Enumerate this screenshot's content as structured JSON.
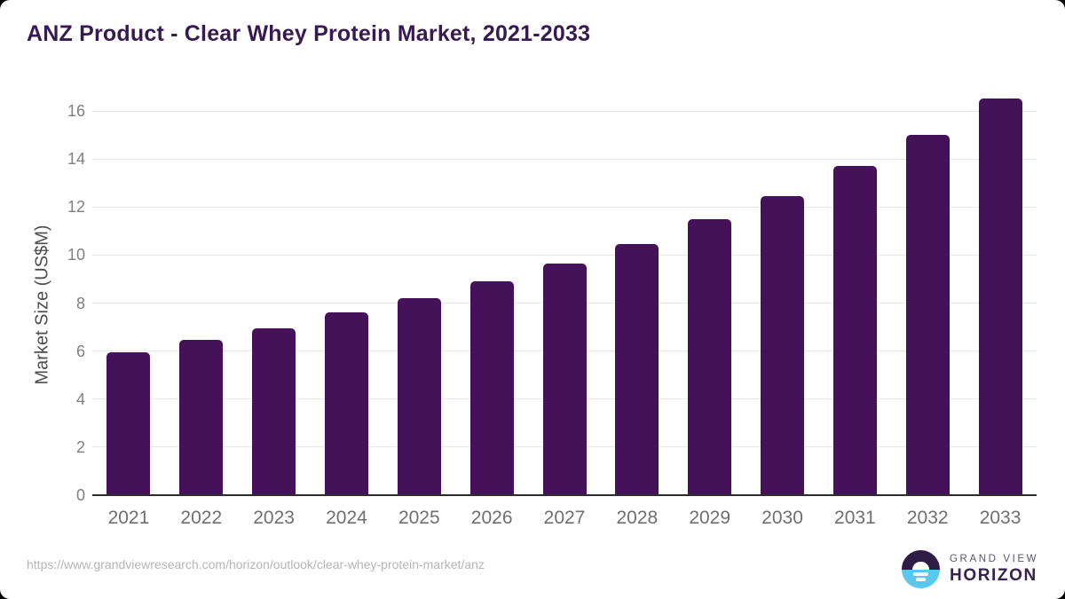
{
  "title": "ANZ Product - Clear Whey Protein Market, 2021-2033",
  "chart_data": {
    "type": "bar",
    "categories": [
      "2021",
      "2022",
      "2023",
      "2024",
      "2025",
      "2026",
      "2027",
      "2028",
      "2029",
      "2030",
      "2031",
      "2032",
      "2033"
    ],
    "values": [
      5.95,
      6.45,
      6.95,
      7.6,
      8.2,
      8.9,
      9.65,
      10.45,
      11.5,
      12.45,
      13.7,
      15.0,
      16.5
    ],
    "title": "ANZ Product - Clear Whey Protein Market, 2021-2033",
    "xlabel": "",
    "ylabel": "Market Size (US$M)",
    "ylim": [
      0,
      16
    ],
    "yticks": [
      0,
      2,
      4,
      6,
      8,
      10,
      12,
      14,
      16
    ],
    "grid": true,
    "legend": "none",
    "bar_color": "#451158"
  },
  "footer": {
    "source_url": "https://www.grandviewresearch.com/horizon/outlook/clear-whey-protein-market/anz",
    "logo": {
      "brand_top": "GRAND VIEW",
      "brand_bottom": "HORIZON",
      "icon": "sun-over-horizon-icon",
      "icon_dark_color": "#2e1c46",
      "icon_blue_color": "#5ac7ef"
    }
  },
  "colors": {
    "title_text": "#371a52",
    "bar": "#451158",
    "gridline": "#e8e8e8",
    "axis_line": "#2b2b2b",
    "tick_text": "#808080",
    "x_label_text": "#6f6f6f",
    "y_axis_title_text": "#4d4d4d",
    "footer_url_text": "#b5b5b5",
    "background": "#ffffff"
  }
}
